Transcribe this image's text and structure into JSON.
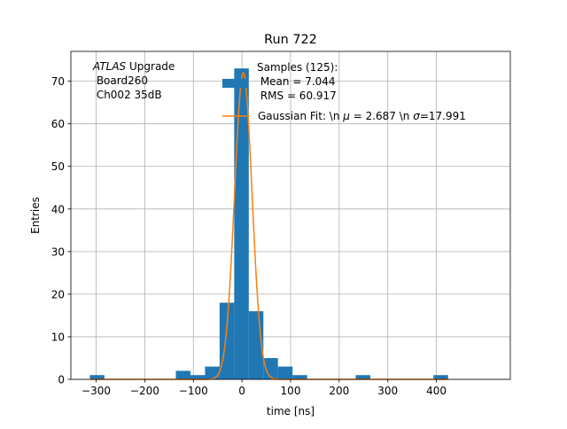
{
  "chart_data": {
    "type": "bar",
    "title": "Run 722",
    "xlabel": "time [ns]",
    "ylabel": "Entries",
    "xlim": [
      -352,
      552
    ],
    "ylim": [
      0,
      77
    ],
    "grid": true,
    "xticks": [
      -300,
      -200,
      -100,
      0,
      100,
      200,
      300,
      400
    ],
    "yticks": [
      0,
      10,
      20,
      30,
      40,
      50,
      60,
      70
    ],
    "annotation": {
      "italic_part": "ATLAS",
      "lines": [
        " Upgrade",
        " Board260",
        " Ch002 35dB"
      ]
    },
    "legend": {
      "placement": "top-center",
      "histogram_lines": [
        "Samples (125):",
        " Mean = 7.044",
        " RMS = 60.917"
      ],
      "fit_label_parts": [
        "Gaussian Fit: \\n ",
        "μ",
        " = 2.687 \\n ",
        "σ",
        "=17.991"
      ]
    },
    "histogram": {
      "name": "Samples",
      "color": "#1f77b4",
      "count": 125,
      "mean": 7.044,
      "rms": 60.917,
      "bins": [
        {
          "x0": -313,
          "x1": -283,
          "count": 1
        },
        {
          "x0": -136,
          "x1": -106,
          "count": 2
        },
        {
          "x0": -106,
          "x1": -76,
          "count": 1
        },
        {
          "x0": -76,
          "x1": -46,
          "count": 3
        },
        {
          "x0": -46,
          "x1": -16,
          "count": 18
        },
        {
          "x0": -16,
          "x1": 14,
          "count": 73
        },
        {
          "x0": 14,
          "x1": 44,
          "count": 16
        },
        {
          "x0": 44,
          "x1": 74,
          "count": 5
        },
        {
          "x0": 74,
          "x1": 104,
          "count": 3
        },
        {
          "x0": 104,
          "x1": 134,
          "count": 1
        },
        {
          "x0": 234,
          "x1": 264,
          "count": 1
        },
        {
          "x0": 394,
          "x1": 424,
          "count": 1
        }
      ]
    },
    "fit": {
      "name": "Gaussian Fit",
      "color": "#ff7f0e",
      "amplitude": 72,
      "mu": 2.687,
      "sigma": 17.991,
      "x_range": [
        -313,
        424
      ]
    }
  }
}
